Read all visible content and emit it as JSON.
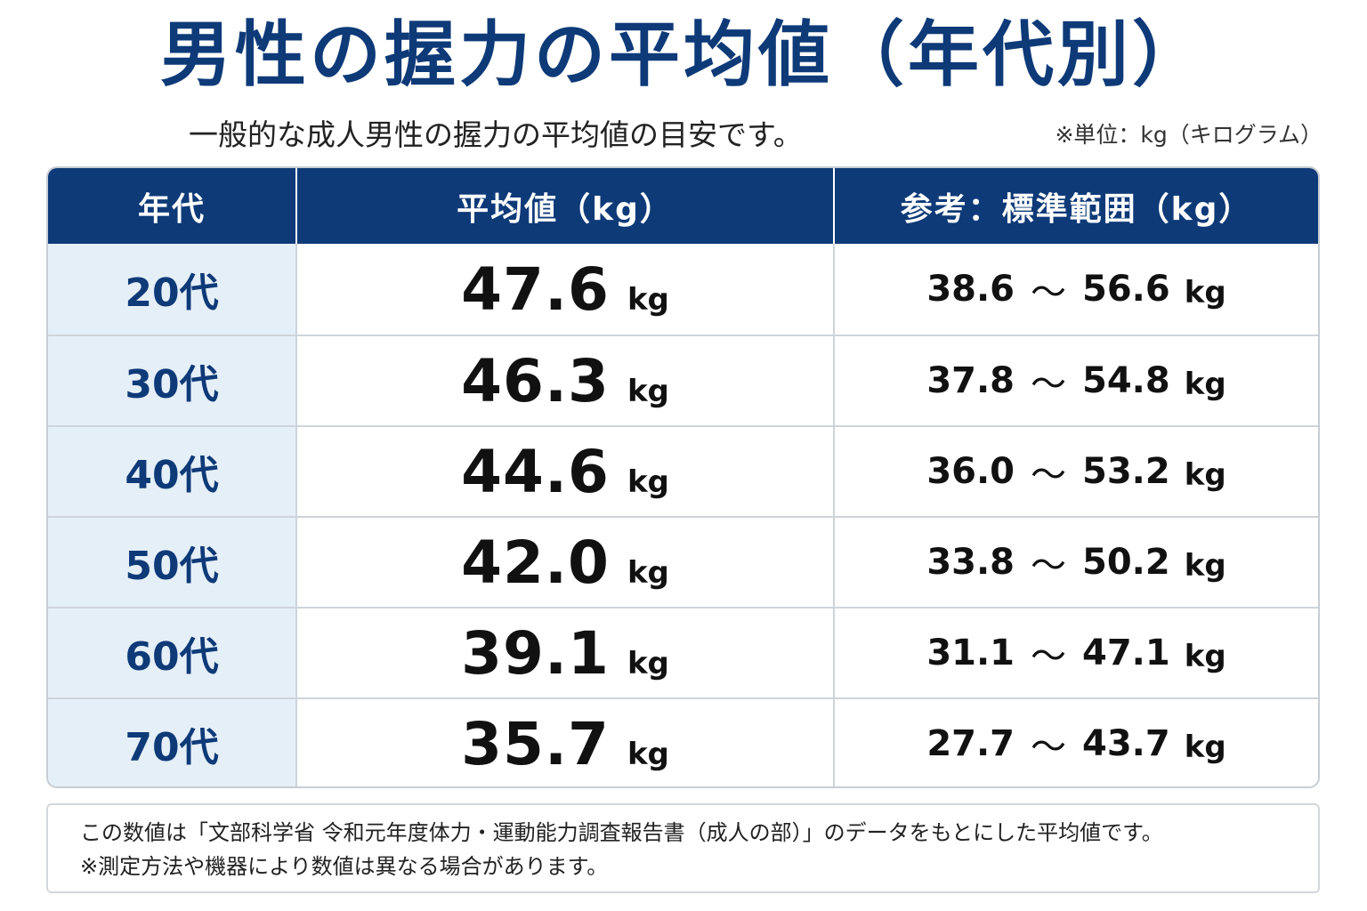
{
  "header": {
    "title": "男性の握力の平均値（年代別）",
    "subtitle": "一般的な成人男性の握力の平均値の目安です。",
    "unit_note": "※単位：kg（キログラム）"
  },
  "table": {
    "columns": [
      "年代",
      "平均値（kg）",
      "参考：標準範囲（kg）"
    ],
    "rows": [
      {
        "age": "20代",
        "avg": "47.6",
        "avg_unit": "kg",
        "range_low": "38.6",
        "range_sep": "～",
        "range_high": "56.6",
        "range_unit": "kg"
      },
      {
        "age": "30代",
        "avg": "46.3",
        "avg_unit": "kg",
        "range_low": "37.8",
        "range_sep": "～",
        "range_high": "54.8",
        "range_unit": "kg"
      },
      {
        "age": "40代",
        "avg": "44.6",
        "avg_unit": "kg",
        "range_low": "36.0",
        "range_sep": "～",
        "range_high": "53.2",
        "range_unit": "kg"
      },
      {
        "age": "50代",
        "avg": "42.0",
        "avg_unit": "kg",
        "range_low": "33.8",
        "range_sep": "～",
        "range_high": "50.2",
        "range_unit": "kg"
      },
      {
        "age": "60代",
        "avg": "39.1",
        "avg_unit": "kg",
        "range_low": "31.1",
        "range_sep": "～",
        "range_high": "47.1",
        "range_unit": "kg"
      },
      {
        "age": "70代",
        "avg": "35.7",
        "avg_unit": "kg",
        "range_low": "27.7",
        "range_sep": "～",
        "range_high": "43.7",
        "range_unit": "kg"
      }
    ]
  },
  "note": {
    "line1": "この数値は「文部科学省 令和元年度体力・運動能力調査報告書（成人の部）」のデータをもとにした平均値です。",
    "line2": "※測定方法や機器により数値は異なる場合があります。"
  },
  "colors": {
    "primary": "#0e3a78",
    "age_cell_bg": "#e5eff8",
    "border": "#cfd4da",
    "text": "#111111"
  }
}
